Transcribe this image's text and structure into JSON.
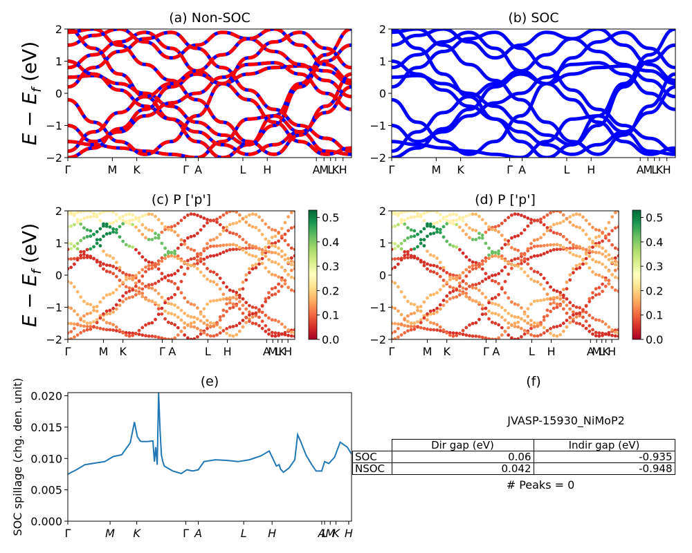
{
  "chart_data": [
    {
      "type": "line",
      "title": "(a) Non-SOC",
      "ylabel": "E − E_f (eV)",
      "ylim": [
        -2,
        2
      ],
      "yticks": [
        "2",
        "1",
        "0",
        "−1",
        "−2"
      ],
      "kpath_labels": [
        "Γ",
        "M",
        "K",
        "Γ",
        "A",
        "L",
        "H",
        "A",
        "M",
        "L",
        "K",
        "H"
      ],
      "kpath_positions": [
        0,
        0.157,
        0.243,
        0.416,
        0.46,
        0.617,
        0.703,
        0.876,
        0.903,
        0.926,
        0.944,
        0.97
      ],
      "series": [
        {
          "color": "#0000ff",
          "values": [
            [
              -1.5,
              -1.6,
              -1.7,
              -1.8,
              -1.9,
              -2.0
            ],
            [
              0.5,
              0.1,
              -0.4,
              -0.9,
              -1.4,
              -1.9
            ],
            [
              0.8,
              1.2,
              1.6,
              1.9,
              1.5,
              1.0,
              0.6,
              0.2,
              -0.3,
              -0.8
            ]
          ]
        },
        {
          "color": "#ff0000",
          "dash": true,
          "values": [
            [
              -1.5,
              -1.6,
              -1.7,
              -1.8,
              -1.9,
              -2.0
            ],
            [
              0.5,
              0.1,
              -0.4,
              -0.9,
              -1.4,
              -1.9
            ],
            [
              0.8,
              1.2,
              1.6,
              1.9,
              1.5,
              1.0,
              0.6,
              0.2,
              -0.3,
              -0.8
            ]
          ]
        }
      ]
    },
    {
      "type": "line",
      "title": "(b) SOC",
      "ylim": [
        -2,
        2
      ],
      "yticks": [
        "2",
        "1",
        "0",
        "−1",
        "−2"
      ],
      "kpath_labels": [
        "Γ",
        "M",
        "K",
        "Γ",
        "A",
        "L",
        "H",
        "A",
        "M",
        "L",
        "K",
        "H"
      ],
      "series": [
        {
          "color": "#0000ff"
        }
      ]
    },
    {
      "type": "scatter",
      "title": "(c)  P ['p']",
      "ylabel": "E − E_f (eV)",
      "ylim": [
        -2,
        2
      ],
      "yticks": [
        "2",
        "1",
        "0",
        "−1",
        "−2"
      ],
      "kpath_labels": [
        "Γ",
        "M",
        "K",
        "Γ",
        "A",
        "L",
        "H",
        "A",
        "M",
        "L",
        "K",
        "H"
      ],
      "colorbar": {
        "range": [
          0.0,
          0.53
        ],
        "ticks": [
          "0.0",
          "0.1",
          "0.2",
          "0.3",
          "0.4",
          "0.5"
        ],
        "colormap": "RdYlGn"
      }
    },
    {
      "type": "scatter",
      "title": "(d) P ['p']",
      "ylim": [
        -2,
        2
      ],
      "yticks": [
        "2",
        "1",
        "0",
        "−1",
        "−2"
      ],
      "kpath_labels": [
        "Γ",
        "M",
        "K",
        "Γ",
        "A",
        "L",
        "H",
        "A",
        "M",
        "L",
        "K",
        "H"
      ],
      "colorbar": {
        "range": [
          0.0,
          0.53
        ],
        "ticks": [
          "0.0",
          "0.1",
          "0.2",
          "0.3",
          "0.4",
          "0.5"
        ],
        "colormap": "RdYlGn"
      }
    },
    {
      "type": "line",
      "title": "(e)",
      "ylabel": "SOC spillage (chg. den. unit)",
      "ylim": [
        0,
        0.0205
      ],
      "yticks": [
        "0.000",
        "0.005",
        "0.010",
        "0.015",
        "0.020"
      ],
      "kpath_labels": [
        "Γ",
        "M",
        "K",
        "Γ",
        "A",
        "L",
        "H",
        "A",
        "L",
        "M",
        "K",
        "H"
      ],
      "color": "#1f77b4",
      "x": [
        0,
        0.03,
        0.06,
        0.1,
        0.13,
        0.16,
        0.19,
        0.22,
        0.235,
        0.245,
        0.255,
        0.26,
        0.28,
        0.3,
        0.305,
        0.31,
        0.315,
        0.32,
        0.325,
        0.33,
        0.335,
        0.34,
        0.37,
        0.4,
        0.42,
        0.44,
        0.46,
        0.48,
        0.52,
        0.56,
        0.6,
        0.64,
        0.68,
        0.71,
        0.735,
        0.745,
        0.75,
        0.76,
        0.78,
        0.8,
        0.81,
        0.82,
        0.84,
        0.86,
        0.875,
        0.895,
        0.905,
        0.92,
        0.94,
        0.96,
        0.985,
        1.0
      ],
      "values": [
        0.0075,
        0.0082,
        0.009,
        0.0093,
        0.0095,
        0.0103,
        0.0106,
        0.0125,
        0.0158,
        0.0135,
        0.0128,
        0.0127,
        0.0127,
        0.0128,
        0.0095,
        0.0118,
        0.009,
        0.0205,
        0.0145,
        0.0105,
        0.0095,
        0.0088,
        0.008,
        0.0076,
        0.0082,
        0.008,
        0.0082,
        0.0095,
        0.0098,
        0.0097,
        0.0095,
        0.0098,
        0.0104,
        0.0112,
        0.0088,
        0.009,
        0.0083,
        0.0078,
        0.0085,
        0.0098,
        0.0138,
        0.0128,
        0.0105,
        0.009,
        0.008,
        0.008,
        0.0095,
        0.0092,
        0.0102,
        0.0126,
        0.0118,
        0.0107
      ]
    }
  ],
  "panel_f": {
    "title": "(f)",
    "material": "JVASP-15930_NiMoP2",
    "table": {
      "headers": [
        "Dir gap (eV)",
        "Indir gap (eV)"
      ],
      "rows": [
        {
          "label": "SOC",
          "dir": "0.06",
          "indir": "-0.935"
        },
        {
          "label": "NSOC",
          "dir": "0.042",
          "indir": "-0.948"
        }
      ]
    },
    "peaks_text": "# Peaks = 0"
  }
}
